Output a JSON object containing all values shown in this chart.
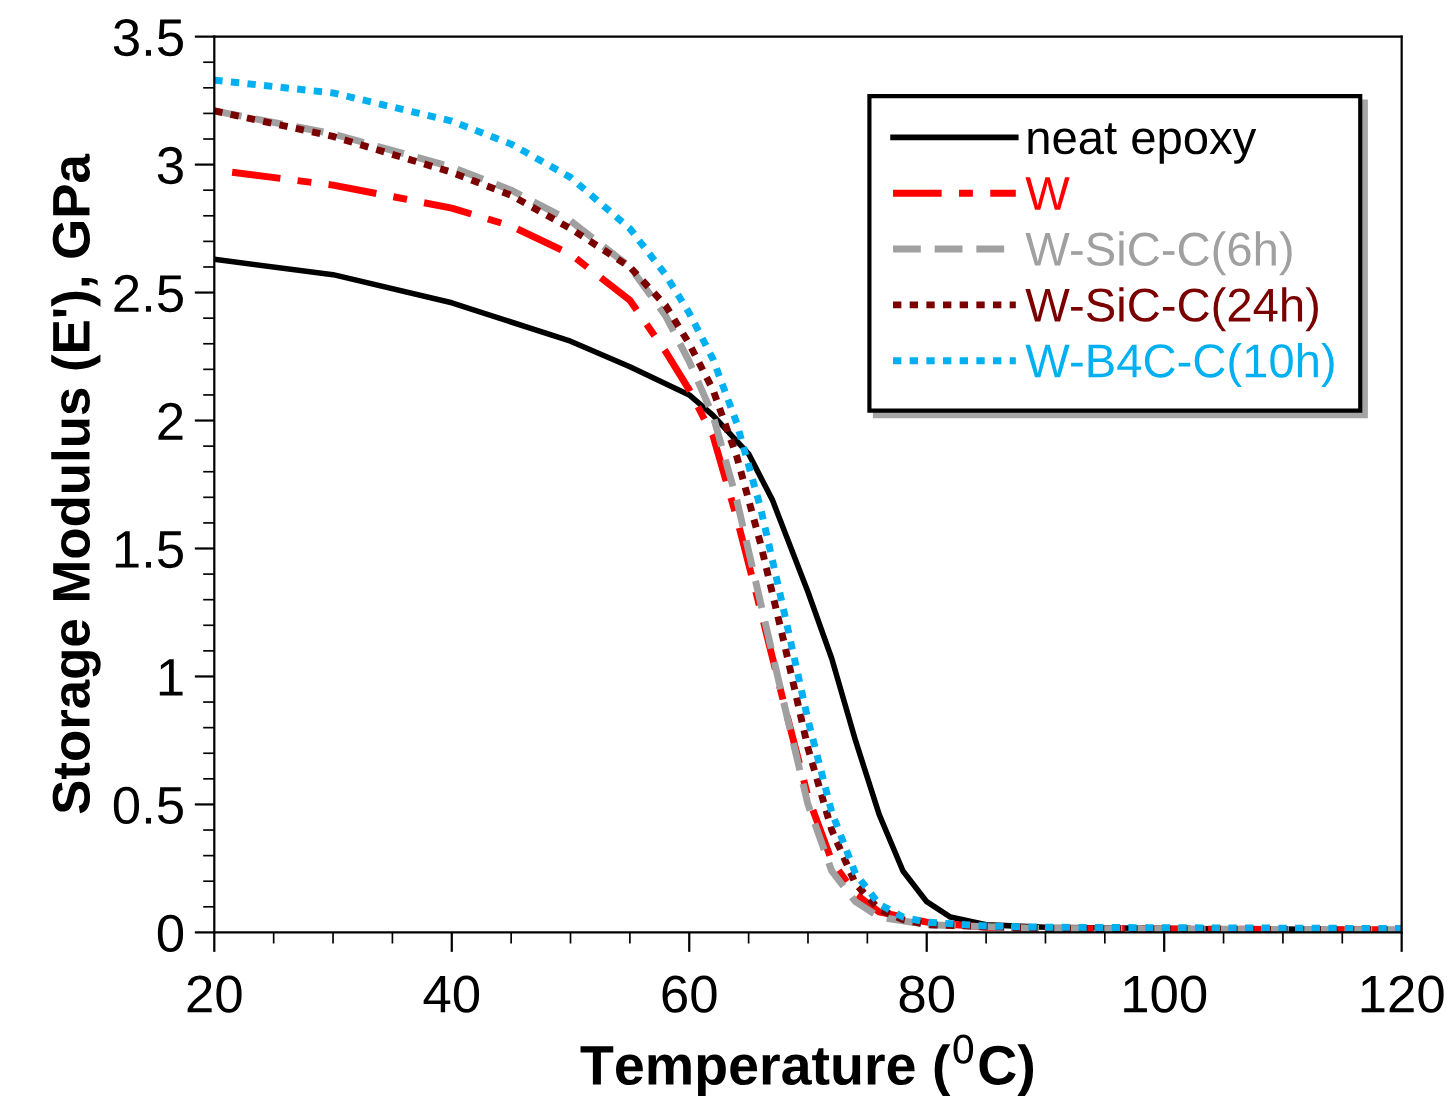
{
  "chart_data": {
    "type": "line",
    "xlabel": "Temperature ($^{0}$C)",
    "ylabel": "Storage Modulus (E'), GPa",
    "xlim": [
      20,
      120
    ],
    "ylim": [
      0,
      3.5
    ],
    "xticks": [
      20,
      40,
      60,
      80,
      100,
      120,
      {
        "value": 25,
        "label": null
      },
      {
        "value": 30,
        "label": null
      },
      {
        "value": 35,
        "label": null
      },
      {
        "value": 45,
        "label": null
      },
      {
        "value": 50,
        "label": null
      },
      {
        "value": 55,
        "label": null
      },
      {
        "value": 65,
        "label": null
      },
      {
        "value": 70,
        "label": null
      },
      {
        "value": 75,
        "label": null
      },
      {
        "value": 85,
        "label": null
      },
      {
        "value": 90,
        "label": null
      },
      {
        "value": 95,
        "label": null
      },
      {
        "value": 105,
        "label": null
      },
      {
        "value": 110,
        "label": null
      },
      {
        "value": 115,
        "label": null
      }
    ],
    "yticks": [
      0,
      0.5,
      1,
      1.5,
      2,
      2.5,
      3,
      3.5,
      {
        "value": 0.1,
        "label": null
      },
      {
        "value": 0.2,
        "label": null
      },
      {
        "value": 0.3,
        "label": null
      },
      {
        "value": 0.4,
        "label": null
      },
      {
        "value": 0.6,
        "label": null
      },
      {
        "value": 0.7,
        "label": null
      },
      {
        "value": 0.8,
        "label": null
      },
      {
        "value": 0.9,
        "label": null
      },
      {
        "value": 1.1,
        "label": null
      },
      {
        "value": 1.2,
        "label": null
      },
      {
        "value": 1.3,
        "label": null
      },
      {
        "value": 1.4,
        "label": null
      },
      {
        "value": 1.6,
        "label": null
      },
      {
        "value": 1.7,
        "label": null
      },
      {
        "value": 1.8,
        "label": null
      },
      {
        "value": 1.9,
        "label": null
      },
      {
        "value": 2.1,
        "label": null
      },
      {
        "value": 2.2,
        "label": null
      },
      {
        "value": 2.3,
        "label": null
      },
      {
        "value": 2.4,
        "label": null
      },
      {
        "value": 2.6,
        "label": null
      },
      {
        "value": 2.7,
        "label": null
      },
      {
        "value": 2.8,
        "label": null
      },
      {
        "value": 2.9,
        "label": null
      },
      {
        "value": 3.1,
        "label": null
      },
      {
        "value": 3.2,
        "label": null
      },
      {
        "value": 3.3,
        "label": null
      },
      {
        "value": 3.4,
        "label": null
      }
    ],
    "grid": false,
    "legend": "top right",
    "marker": "none",
    "series": [
      {
        "name": "neat epoxy",
        "color": "#000000",
        "line_style": "solid",
        "x": [
          20,
          30,
          40,
          50,
          55,
          60,
          62,
          65,
          67,
          70,
          72,
          74,
          76,
          78,
          80,
          82,
          85,
          90,
          100,
          120
        ],
        "values": [
          2.63,
          2.57,
          2.46,
          2.31,
          2.21,
          2.1,
          2.02,
          1.87,
          1.69,
          1.33,
          1.07,
          0.75,
          0.46,
          0.24,
          0.12,
          0.06,
          0.03,
          0.02,
          0.015,
          0.01
        ]
      },
      {
        "name": "W",
        "color": "#ff0000",
        "line_style": "dashdot",
        "x": [
          21.5,
          30,
          40,
          45,
          50,
          55,
          58,
          60,
          62,
          64,
          66,
          68,
          70,
          72,
          74,
          76,
          80,
          85,
          90,
          120
        ],
        "values": [
          2.97,
          2.92,
          2.83,
          2.76,
          2.65,
          2.47,
          2.27,
          2.12,
          1.94,
          1.62,
          1.26,
          0.89,
          0.53,
          0.28,
          0.15,
          0.08,
          0.04,
          0.02,
          0.015,
          0.01
        ]
      },
      {
        "name": "W-SiC-C(6h)",
        "color": "#a0a0a0",
        "line_style": "dashed",
        "x": [
          20,
          30,
          40,
          45,
          50,
          55,
          58,
          60,
          62,
          64,
          66,
          68,
          70,
          72,
          74,
          76,
          80,
          90,
          120
        ],
        "values": [
          3.21,
          3.12,
          2.99,
          2.9,
          2.78,
          2.6,
          2.41,
          2.23,
          2.02,
          1.69,
          1.29,
          0.89,
          0.5,
          0.24,
          0.12,
          0.06,
          0.03,
          0.015,
          0.01
        ]
      },
      {
        "name": "W-SiC-C(24h)",
        "color": "#7b0000",
        "line_style": "dotted",
        "x": [
          20,
          30,
          40,
          45,
          50,
          55,
          58,
          60,
          62,
          64,
          66,
          68,
          70,
          72,
          74,
          76,
          78,
          80,
          90,
          120
        ],
        "values": [
          3.21,
          3.11,
          2.97,
          2.88,
          2.75,
          2.6,
          2.45,
          2.3,
          2.12,
          1.86,
          1.52,
          1.13,
          0.72,
          0.4,
          0.19,
          0.09,
          0.05,
          0.03,
          0.015,
          0.01
        ]
      },
      {
        "name": "W-B4C-C(10h)",
        "color": "#00b0f0",
        "line_style": "dotted",
        "x": [
          20,
          30,
          40,
          45,
          50,
          55,
          58,
          60,
          62,
          64,
          66,
          68,
          70,
          72,
          74,
          76,
          78,
          80,
          85,
          90,
          120
        ],
        "values": [
          3.33,
          3.28,
          3.17,
          3.08,
          2.95,
          2.75,
          2.57,
          2.42,
          2.24,
          1.99,
          1.66,
          1.25,
          0.83,
          0.47,
          0.23,
          0.11,
          0.06,
          0.04,
          0.025,
          0.02,
          0.015
        ]
      }
    ]
  }
}
